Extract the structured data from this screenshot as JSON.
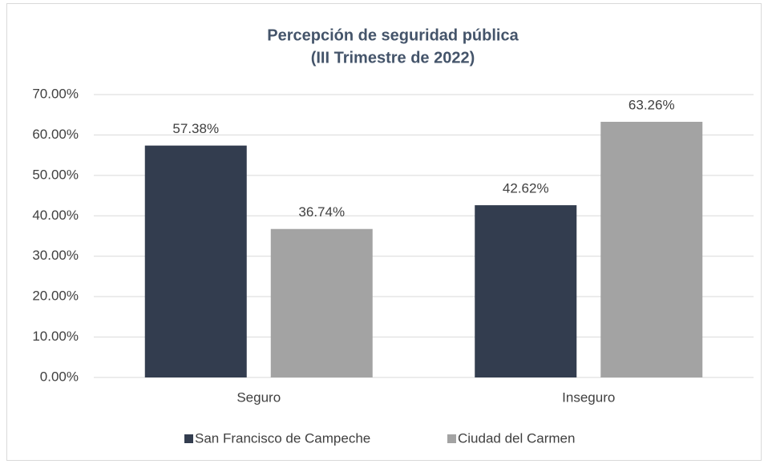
{
  "chart_data": {
    "type": "bar",
    "title": "Percepción de seguridad pública",
    "subtitle": "(III Trimestre de 2022)",
    "categories": [
      "Seguro",
      "Inseguro"
    ],
    "series": [
      {
        "name": "San Francisco de Campeche",
        "color": "#333d4f",
        "values": [
          57.38,
          42.62
        ],
        "value_labels": [
          "57.38%",
          "42.62%"
        ]
      },
      {
        "name": "Ciudad del Carmen",
        "color": "#a3a3a3",
        "values": [
          36.74,
          63.26
        ],
        "value_labels": [
          "36.74%",
          "63.26%"
        ]
      }
    ],
    "ylim": [
      0,
      70
    ],
    "yticks": [
      {
        "value": 0,
        "label": "0.00%"
      },
      {
        "value": 10,
        "label": "10.00%"
      },
      {
        "value": 20,
        "label": "20.00%"
      },
      {
        "value": 30,
        "label": "30.00%"
      },
      {
        "value": 40,
        "label": "40.00%"
      },
      {
        "value": 50,
        "label": "50.00%"
      },
      {
        "value": 60,
        "label": "60.00%"
      },
      {
        "value": 70,
        "label": "70.00%"
      }
    ],
    "grid": true,
    "legend": "bottom"
  }
}
